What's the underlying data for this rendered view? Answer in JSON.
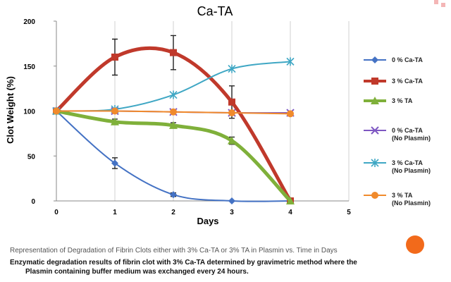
{
  "chart_data": {
    "type": "line",
    "title": "Ca-TA",
    "xlabel": "Days",
    "ylabel": "Clot Weight (%)",
    "xlim": [
      0,
      5
    ],
    "ylim": [
      0,
      200
    ],
    "x_ticks": [
      "0",
      "1",
      "2",
      "3",
      "4",
      "5"
    ],
    "y_ticks": [
      "0",
      "50",
      "100",
      "150",
      "200"
    ],
    "grid": "vertical",
    "legend_position": "right",
    "series": [
      {
        "name": "0 % Ca-TA",
        "color": "#4472c4",
        "marker": "diamond",
        "width": 2,
        "x": [
          0,
          1,
          2,
          3,
          4
        ],
        "y": [
          100,
          42,
          7,
          0,
          0
        ],
        "err": [
          0,
          6,
          2,
          0,
          0
        ]
      },
      {
        "name": "3 % Ca-TA",
        "color": "#c0392b",
        "marker": "square",
        "width": 5,
        "x": [
          0,
          1,
          2,
          3,
          4
        ],
        "y": [
          100,
          160,
          165,
          110,
          0
        ],
        "err": [
          0,
          20,
          19,
          18,
          0
        ]
      },
      {
        "name": "3 % TA",
        "color": "#7fb03a",
        "marker": "triangle",
        "width": 5,
        "x": [
          0,
          1,
          2,
          3,
          4
        ],
        "y": [
          100,
          88,
          84,
          67,
          0
        ],
        "err": [
          0,
          3,
          3,
          4,
          0
        ]
      },
      {
        "name": "0 % Ca-TA\n(No Plasmin)",
        "color": "#7e57c2",
        "marker": "x",
        "width": 2,
        "x": [
          0,
          1,
          2,
          3,
          4
        ],
        "y": [
          100,
          100,
          99,
          98,
          98
        ],
        "err": [
          0,
          0,
          0,
          0,
          0
        ]
      },
      {
        "name": "3 % Ca-TA\n (No Plasmin)",
        "color": "#3fa7c4",
        "marker": "star",
        "width": 2,
        "x": [
          0,
          1,
          2,
          3,
          4
        ],
        "y": [
          100,
          102,
          118,
          147,
          155
        ],
        "err": [
          0,
          0,
          0,
          0,
          0
        ]
      },
      {
        "name": "3 % TA\n(No Plasmin)",
        "color": "#f08a2c",
        "marker": "circle",
        "width": 2,
        "x": [
          0,
          1,
          2,
          3,
          4
        ],
        "y": [
          100,
          100,
          99,
          98,
          97
        ],
        "err": [
          0,
          0,
          0,
          0,
          0
        ]
      }
    ]
  },
  "caption": "Representation of Degradation of Fibrin Clots either with 3% Ca-TA or 3% TA in Plasmin vs. Time in Days",
  "note_line1": "Enzymatic degradation results of fibrin clot with 3% Ca-TA  determined by gravimetric method where the",
  "note_line2": "Plasmin containing buffer medium was exchanged every 24 hours."
}
